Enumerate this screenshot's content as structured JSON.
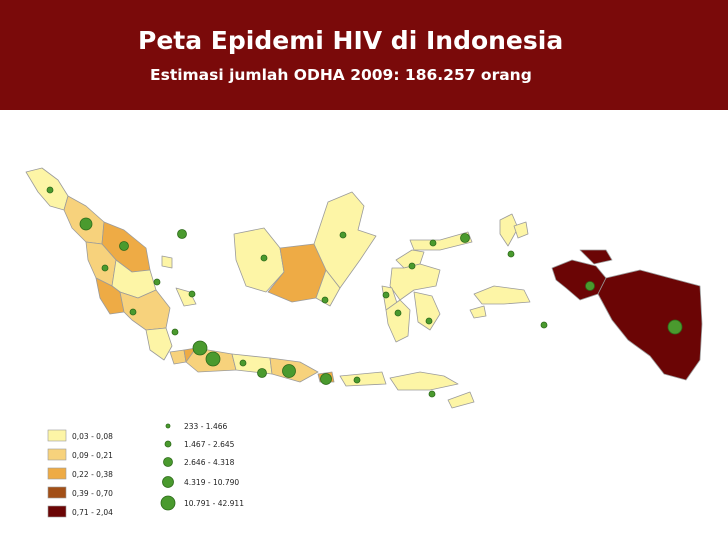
{
  "header": {
    "title": "Peta Epidemi HIV di Indonesia",
    "subtitle": "Estimasi jumlah ODHA 2009: 186.257 orang"
  },
  "colors": {
    "header_bg": "#7a0a0a",
    "prevalence": [
      "#fdf5a6",
      "#f7d27c",
      "#eeab45",
      "#a24f17",
      "#6b0505"
    ],
    "circle": "#4a9a2e"
  },
  "legend": {
    "prevalence": [
      {
        "label": "0,03 - 0,08"
      },
      {
        "label": "0,09 - 0,21"
      },
      {
        "label": "0,22 - 0,38"
      },
      {
        "label": "0,39 - 0,70"
      },
      {
        "label": "0,71 - 2,04"
      }
    ],
    "odha": [
      {
        "label": "233 - 1.466"
      },
      {
        "label": "1.467 - 2.645"
      },
      {
        "label": "2.646 - 4.318"
      },
      {
        "label": "4.319 - 10.790"
      },
      {
        "label": "10.791 - 42.911"
      }
    ]
  }
}
